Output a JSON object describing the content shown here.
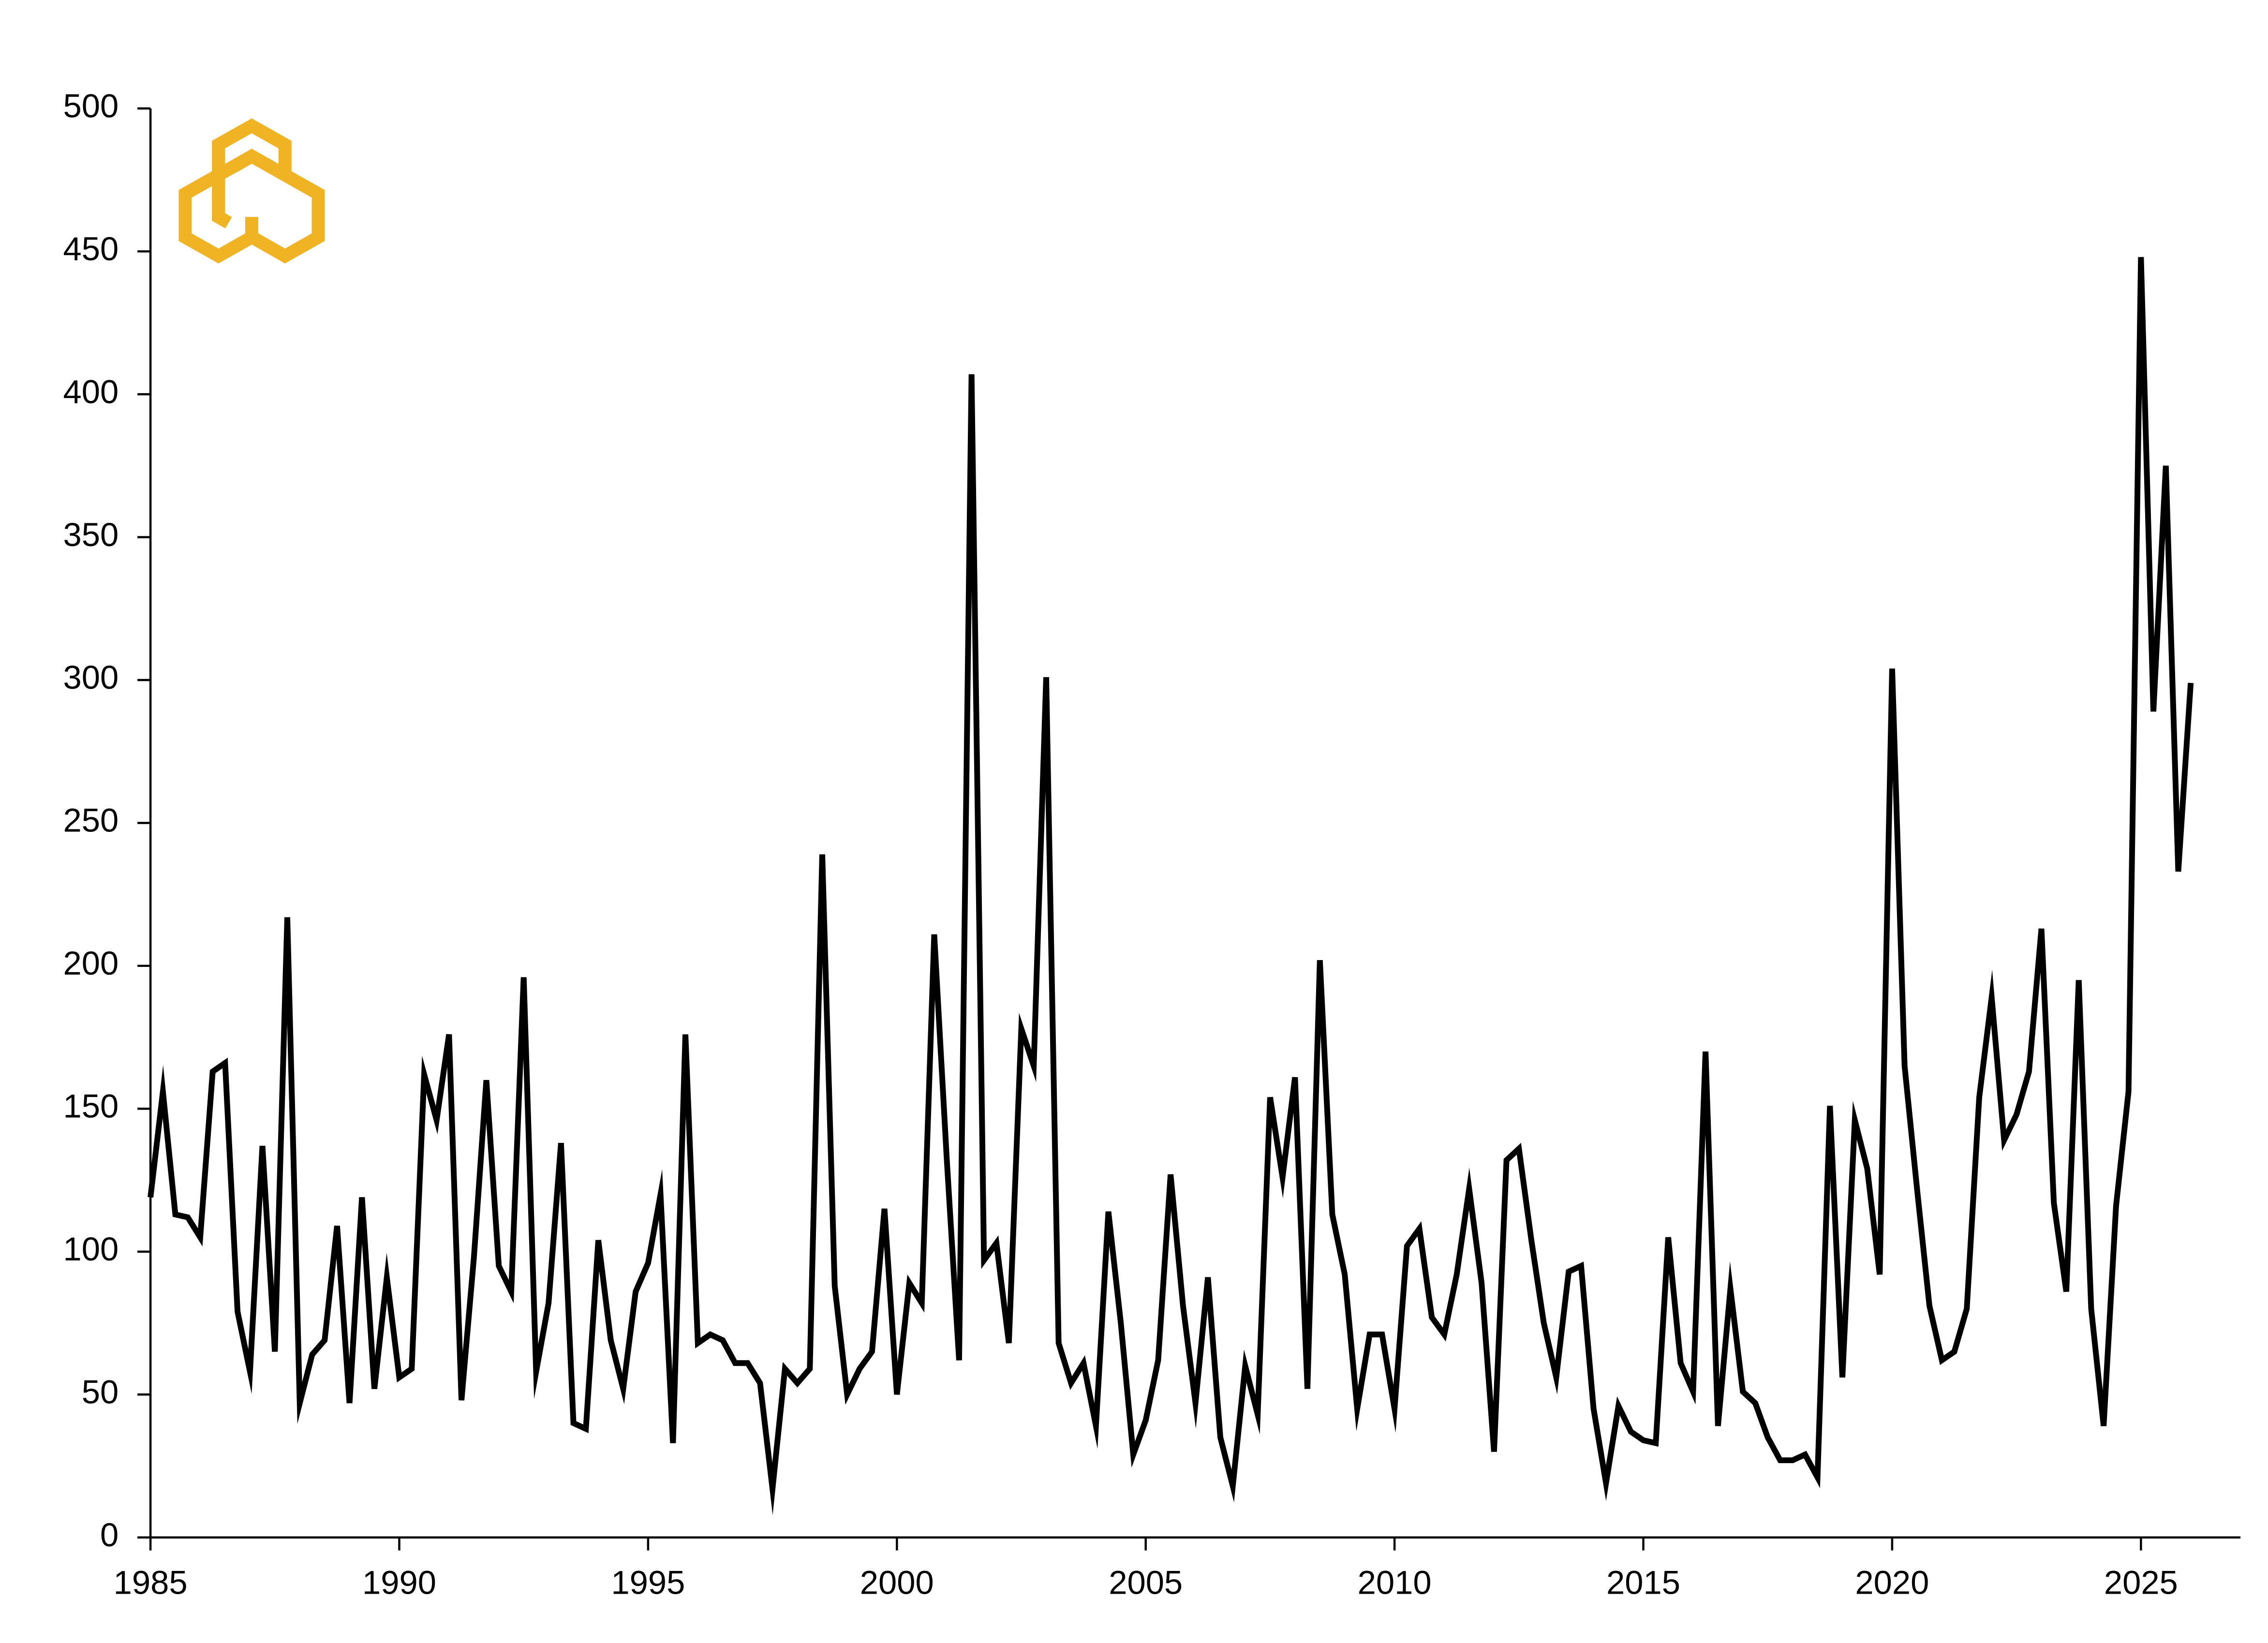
{
  "chart_data": {
    "type": "line",
    "color": "#000000",
    "x": [
      1985,
      1985.25,
      1985.5,
      1985.75,
      1986,
      1986.25,
      1986.5,
      1986.75,
      1987,
      1987.25,
      1987.5,
      1987.75,
      1988,
      1988.25,
      1988.5,
      1988.75,
      1989,
      1989.25,
      1989.5,
      1989.75,
      1990,
      1990.25,
      1990.5,
      1990.75,
      1991,
      1991.25,
      1991.5,
      1991.75,
      1992,
      1992.25,
      1992.5,
      1992.75,
      1993,
      1993.25,
      1993.5,
      1993.75,
      1994,
      1994.25,
      1994.5,
      1994.75,
      1995,
      1995.25,
      1995.5,
      1995.75,
      1996,
      1996.25,
      1996.5,
      1996.75,
      1997,
      1997.25,
      1997.5,
      1997.75,
      1998,
      1998.25,
      1998.5,
      1998.75,
      1999,
      1999.25,
      1999.5,
      1999.75,
      2000,
      2000.25,
      2000.5,
      2000.75,
      2001,
      2001.25,
      2001.5,
      2001.75,
      2002,
      2002.25,
      2002.5,
      2002.75,
      2003,
      2003.25,
      2003.5,
      2003.75,
      2004,
      2004.25,
      2004.5,
      2004.75,
      2005,
      2005.25,
      2005.5,
      2005.75,
      2006,
      2006.25,
      2006.5,
      2006.75,
      2007,
      2007.25,
      2007.5,
      2007.75,
      2008,
      2008.25,
      2008.5,
      2008.75,
      2009,
      2009.25,
      2009.5,
      2009.75,
      2010,
      2010.25,
      2010.5,
      2010.75,
      2011,
      2011.25,
      2011.5,
      2011.75,
      2012,
      2012.25,
      2012.5,
      2012.75,
      2013,
      2013.25,
      2013.5,
      2013.75,
      2014,
      2014.25,
      2014.5,
      2014.75,
      2015,
      2015.25,
      2015.5,
      2015.75,
      2016,
      2016.25,
      2016.5,
      2016.75,
      2017,
      2017.25,
      2017.5,
      2017.75,
      2018,
      2018.25,
      2018.5,
      2018.75,
      2019,
      2019.25,
      2019.5,
      2019.75,
      2020,
      2020.25,
      2020.5,
      2020.75,
      2021,
      2021.25,
      2021.5,
      2021.75,
      2022,
      2022.25,
      2022.5,
      2022.75,
      2023,
      2023.25,
      2023.5,
      2023.75,
      2024,
      2024.25,
      2024.5,
      2024.75,
      2025,
      2025.25,
      2025.5,
      2025.75,
      2026
    ],
    "values": [
      119,
      156,
      113,
      112,
      105,
      163,
      166,
      79,
      58,
      137,
      65,
      217,
      47,
      64,
      69,
      109,
      47,
      119,
      52,
      91,
      56,
      59,
      162,
      146,
      176,
      48,
      98,
      160,
      95,
      86,
      196,
      58,
      82,
      138,
      40,
      38,
      104,
      69,
      52,
      86,
      96,
      120,
      33,
      176,
      68,
      71,
      69,
      61,
      61,
      54,
      17,
      59,
      54,
      59,
      239,
      88,
      50,
      59,
      65,
      115,
      50,
      89,
      82,
      211,
      133,
      62,
      407,
      97,
      103,
      68,
      178,
      165,
      301,
      68,
      54,
      61,
      39,
      114,
      75,
      29,
      41,
      62,
      127,
      81,
      47,
      91,
      35,
      18,
      60,
      43,
      154,
      126,
      161,
      52,
      202,
      113,
      92,
      45,
      71,
      71,
      45,
      102,
      108,
      77,
      71,
      92,
      122,
      89,
      30,
      132,
      136,
      104,
      75,
      56,
      93,
      95,
      45,
      19,
      46,
      37,
      34,
      33,
      105,
      61,
      51,
      170,
      39,
      87,
      51,
      47,
      35,
      27,
      27,
      29,
      21,
      151,
      56,
      146,
      129,
      92,
      304,
      165,
      122,
      81,
      62,
      65,
      80,
      154,
      189,
      139,
      148,
      163,
      213,
      117,
      86,
      195,
      80,
      39,
      116,
      156,
      448,
      289,
      375,
      233,
      299
    ],
    "xlim": [
      1985,
      2027
    ],
    "xticks": [
      1985,
      1990,
      1995,
      2000,
      2005,
      2010,
      2015,
      2020,
      2025
    ],
    "ylim": [
      0,
      500
    ],
    "yticks": [
      0,
      50,
      100,
      150,
      200,
      250,
      300,
      350,
      400,
      450,
      500
    ],
    "grid": false
  }
}
